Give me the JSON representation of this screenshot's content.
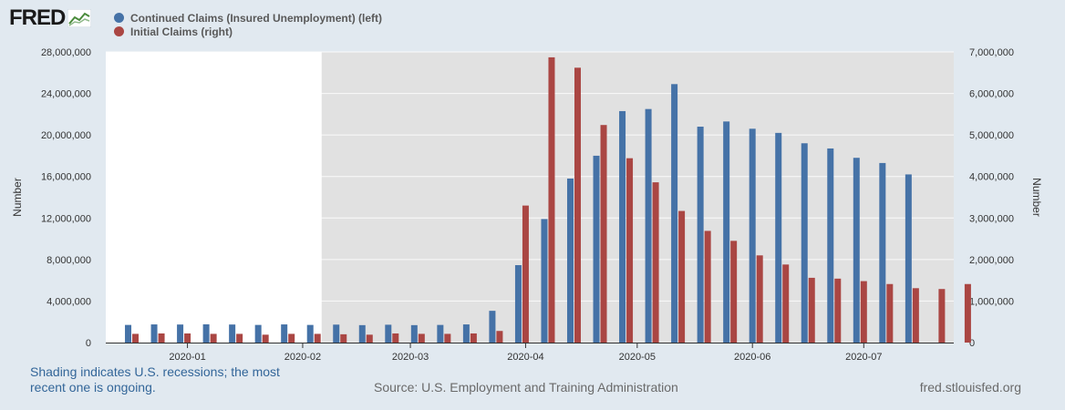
{
  "brand": {
    "logo_text": "FRED"
  },
  "colors": {
    "continued": "#4572a7",
    "initial": "#aa4643",
    "recession_shading": "#e1e1e1",
    "plot_background": "#ffffff",
    "page_background": "#e1e9f0"
  },
  "footer": {
    "note": "Shading indicates U.S. recessions; the most recent one is ongoing.",
    "source": "Source: U.S. Employment and Training Administration",
    "site": "fred.stlouisfed.org"
  },
  "chart_data": {
    "type": "bar",
    "title": "",
    "left_axis": {
      "label": "Number",
      "range": [
        0,
        28000000
      ],
      "ticks": [
        "0",
        "4,000,000",
        "8,000,000",
        "12,000,000",
        "16,000,000",
        "20,000,000",
        "24,000,000",
        "28,000,000"
      ]
    },
    "right_axis": {
      "label": "Number",
      "range": [
        0,
        7000000
      ],
      "ticks": [
        "0",
        "1,000,000",
        "2,000,000",
        "3,000,000",
        "4,000,000",
        "5,000,000",
        "6,000,000",
        "7,000,000"
      ]
    },
    "x_axis": {
      "range_weeks": [
        0,
        32.6
      ],
      "ticks": [
        {
          "label": "2020-01",
          "week": 3.14
        },
        {
          "label": "2020-02",
          "week": 7.57
        },
        {
          "label": "2020-03",
          "week": 11.71
        },
        {
          "label": "2020-04",
          "week": 16.14
        },
        {
          "label": "2020-05",
          "week": 20.43
        },
        {
          "label": "2020-06",
          "week": 24.86
        },
        {
          "label": "2020-07",
          "week": 29.14
        }
      ]
    },
    "recession_start_week": 8.3,
    "categories": [
      "2019-12-07",
      "2019-12-14",
      "2019-12-21",
      "2019-12-28",
      "2020-01-04",
      "2020-01-11",
      "2020-01-18",
      "2020-01-25",
      "2020-02-01",
      "2020-02-08",
      "2020-02-15",
      "2020-02-22",
      "2020-02-29",
      "2020-03-07",
      "2020-03-14",
      "2020-03-21",
      "2020-03-28",
      "2020-04-04",
      "2020-04-11",
      "2020-04-18",
      "2020-04-25",
      "2020-05-02",
      "2020-05-09",
      "2020-05-16",
      "2020-05-23",
      "2020-05-30",
      "2020-06-06",
      "2020-06-13",
      "2020-06-20",
      "2020-06-27",
      "2020-07-04",
      "2020-07-11",
      "2020-07-18"
    ],
    "series": [
      {
        "name": "Continued Claims (Insured Unemployment) (left)",
        "axis": "left",
        "values": [
          1700000,
          1750000,
          1740000,
          1760000,
          1740000,
          1700000,
          1750000,
          1700000,
          1730000,
          1680000,
          1720000,
          1680000,
          1700000,
          1750000,
          3060000,
          7460000,
          11900000,
          15800000,
          18000000,
          22300000,
          22500000,
          24900000,
          20800000,
          21300000,
          20600000,
          20200000,
          19200000,
          18700000,
          17800000,
          17300000,
          16200000,
          null,
          null
        ]
      },
      {
        "name": "Initial Claims (right)",
        "axis": "right",
        "values": [
          210000,
          220000,
          220000,
          210000,
          210000,
          190000,
          210000,
          210000,
          200000,
          190000,
          220000,
          210000,
          210000,
          220000,
          280000,
          3300000,
          6870000,
          6620000,
          5240000,
          4440000,
          3860000,
          3170000,
          2690000,
          2450000,
          2100000,
          1880000,
          1560000,
          1540000,
          1480000,
          1410000,
          1310000,
          1290000,
          1410000
        ]
      }
    ]
  }
}
